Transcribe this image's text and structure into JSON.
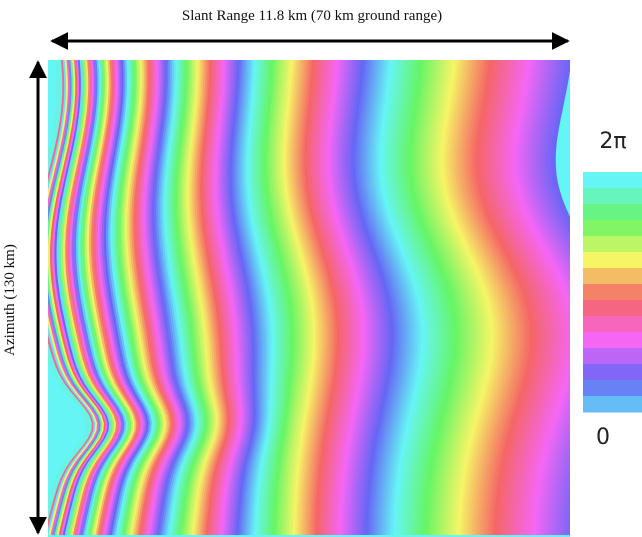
{
  "header": {
    "range_label": "Slant Range  11.8 km (70 km ground range)"
  },
  "azimuth_label": "Azimuth (130 km)",
  "colorbar": {
    "max_label": "2π",
    "min_label": "0"
  }
}
